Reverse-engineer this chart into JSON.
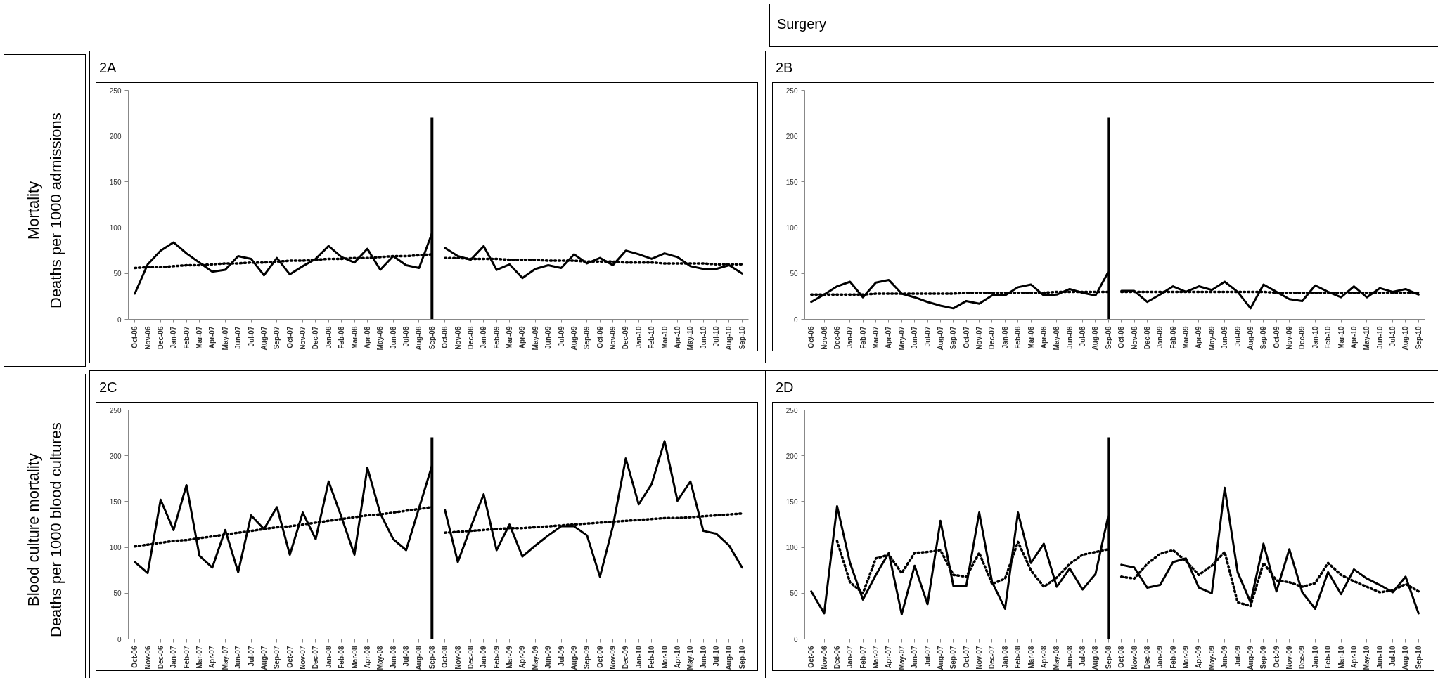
{
  "chart_data": [
    {
      "type": "line",
      "title": "2A",
      "ylabel": "Mortality\nDeaths per 1000 admissions",
      "categories": [
        "Oct-06",
        "Nov-06",
        "Dec-06",
        "Jan-07",
        "Feb-07",
        "Mar-07",
        "Apr-07",
        "May-07",
        "Jun-07",
        "Jul-07",
        "Aug-07",
        "Sep-07",
        "Oct-07",
        "Nov-07",
        "Dec-07",
        "Jan-08",
        "Feb-08",
        "Mar-08",
        "Apr-08",
        "May-08",
        "Jun-08",
        "Jul-08",
        "Aug-08",
        "Sep-08",
        "Oct-08",
        "Nov-08",
        "Dec-08",
        "Jan-09",
        "Feb-09",
        "Mar-09",
        "Apr-09",
        "May-09",
        "Jun-09",
        "Jul-09",
        "Aug-09",
        "Sep-09",
        "Oct-09",
        "Nov-09",
        "Dec-09",
        "Jan-10",
        "Feb-10",
        "Mar-10",
        "Apr-10",
        "May-10",
        "Jun-10",
        "Jul-10",
        "Aug-10",
        "Sep-10"
      ],
      "ylim": [
        0,
        250
      ],
      "yticks": [
        0,
        50,
        100,
        150,
        200,
        250
      ],
      "grid": false,
      "ref_lines": [
        {
          "axis": "x",
          "value": "Sep-08",
          "color": "#000000"
        }
      ],
      "series": [
        {
          "color": "#000000",
          "line_style": "solid",
          "values": [
            28,
            60,
            75,
            84,
            72,
            62,
            52,
            54,
            69,
            66,
            48,
            67,
            49,
            58,
            66,
            80,
            68,
            62,
            77,
            54,
            69,
            59,
            56,
            94,
            null,
            null,
            null,
            null,
            null,
            null,
            null,
            null,
            null,
            null,
            null,
            null,
            null,
            null,
            null,
            null,
            null,
            null,
            null,
            null,
            null,
            null,
            null,
            null
          ]
        },
        {
          "color": "#000000",
          "line_style": "solid",
          "values": [
            null,
            null,
            null,
            null,
            null,
            null,
            null,
            null,
            null,
            null,
            null,
            null,
            null,
            null,
            null,
            null,
            null,
            null,
            null,
            null,
            null,
            null,
            null,
            null,
            78,
            69,
            65,
            80,
            54,
            60,
            45,
            55,
            59,
            56,
            71,
            61,
            67,
            59,
            75,
            71,
            66,
            72,
            68,
            58,
            55,
            55,
            59,
            50
          ]
        },
        {
          "color": "#000000",
          "line_style": "dotted",
          "values": [
            56,
            57,
            57,
            58,
            59,
            59,
            60,
            61,
            61,
            62,
            62,
            63,
            64,
            64,
            65,
            66,
            66,
            67,
            67,
            68,
            69,
            69,
            70,
            71,
            null,
            null,
            null,
            null,
            null,
            null,
            null,
            null,
            null,
            null,
            null,
            null,
            null,
            null,
            null,
            null,
            null,
            null,
            null,
            null,
            null,
            null,
            null,
            null
          ]
        },
        {
          "color": "#000000",
          "line_style": "dotted",
          "values": [
            null,
            null,
            null,
            null,
            null,
            null,
            null,
            null,
            null,
            null,
            null,
            null,
            null,
            null,
            null,
            null,
            null,
            null,
            null,
            null,
            null,
            null,
            null,
            null,
            67,
            67,
            66,
            66,
            66,
            65,
            65,
            65,
            64,
            64,
            64,
            63,
            63,
            63,
            62,
            62,
            62,
            61,
            61,
            61,
            61,
            60,
            60,
            60
          ]
        }
      ]
    },
    {
      "type": "line",
      "title": "2B",
      "subtitle": "Surgery",
      "categories": [
        "Oct-06",
        "Nov-06",
        "Dec-06",
        "Jan-07",
        "Feb-07",
        "Mar-07",
        "Apr-07",
        "May-07",
        "Jun-07",
        "Jul-07",
        "Aug-07",
        "Sep-07",
        "Oct-07",
        "Nov-07",
        "Dec-07",
        "Jan-08",
        "Feb-08",
        "Mar-08",
        "Apr-08",
        "May-08",
        "Jun-08",
        "Jul-08",
        "Aug-08",
        "Sep-08",
        "Oct-08",
        "Nov-08",
        "Dec-08",
        "Jan-09",
        "Feb-09",
        "Mar-09",
        "Apr-09",
        "May-09",
        "Jun-09",
        "Jul-09",
        "Aug-09",
        "Sep-09",
        "Oct-09",
        "Nov-09",
        "Dec-09",
        "Jan-10",
        "Feb-10",
        "Mar-10",
        "Apr-10",
        "May-10",
        "Jun-10",
        "Jul-10",
        "Aug-10",
        "Sep-10"
      ],
      "ylim": [
        0,
        250
      ],
      "yticks": [
        0,
        50,
        100,
        150,
        200,
        250
      ],
      "grid": false,
      "ref_lines": [
        {
          "axis": "x",
          "value": "Sep-08",
          "color": "#000000"
        }
      ],
      "series": [
        {
          "color": "#000000",
          "line_style": "solid",
          "values": [
            19,
            27,
            36,
            41,
            24,
            40,
            43,
            28,
            24,
            19,
            15,
            12,
            20,
            17,
            26,
            26,
            35,
            38,
            26,
            27,
            33,
            29,
            26,
            52,
            null,
            null,
            null,
            null,
            null,
            null,
            null,
            null,
            null,
            null,
            null,
            null,
            null,
            null,
            null,
            null,
            null,
            null,
            null,
            null,
            null,
            null,
            null,
            null
          ]
        },
        {
          "color": "#000000",
          "line_style": "solid",
          "values": [
            null,
            null,
            null,
            null,
            null,
            null,
            null,
            null,
            null,
            null,
            null,
            null,
            null,
            null,
            null,
            null,
            null,
            null,
            null,
            null,
            null,
            null,
            null,
            null,
            31,
            31,
            19,
            27,
            36,
            30,
            36,
            32,
            41,
            30,
            12,
            38,
            30,
            22,
            20,
            37,
            30,
            24,
            36,
            24,
            34,
            30,
            33,
            27
          ]
        },
        {
          "color": "#000000",
          "line_style": "dotted",
          "values": [
            27,
            27,
            27,
            27,
            27,
            28,
            28,
            28,
            28,
            28,
            28,
            28,
            29,
            29,
            29,
            29,
            29,
            29,
            29,
            30,
            30,
            30,
            30,
            30,
            null,
            null,
            null,
            null,
            null,
            null,
            null,
            null,
            null,
            null,
            null,
            null,
            null,
            null,
            null,
            null,
            null,
            null,
            null,
            null,
            null,
            null,
            null,
            null
          ]
        },
        {
          "color": "#000000",
          "line_style": "dotted",
          "values": [
            null,
            null,
            null,
            null,
            null,
            null,
            null,
            null,
            null,
            null,
            null,
            null,
            null,
            null,
            null,
            null,
            null,
            null,
            null,
            null,
            null,
            null,
            null,
            null,
            30,
            30,
            30,
            30,
            30,
            30,
            30,
            30,
            30,
            30,
            30,
            30,
            29,
            29,
            29,
            29,
            29,
            29,
            29,
            29,
            29,
            29,
            29,
            29
          ]
        }
      ]
    },
    {
      "type": "line",
      "title": "2C",
      "ylabel": "Blood culture mortality\nDeaths per 1000 blood cultures",
      "categories": [
        "Oct-06",
        "Nov-06",
        "Dec-06",
        "Jan-07",
        "Feb-07",
        "Mar-07",
        "Apr-07",
        "May-07",
        "Jun-07",
        "Jul-07",
        "Aug-07",
        "Sep-07",
        "Oct-07",
        "Nov-07",
        "Dec-07",
        "Jan-08",
        "Feb-08",
        "Mar-08",
        "Apr-08",
        "May-08",
        "Jun-08",
        "Jul-08",
        "Aug-08",
        "Sep-08",
        "Oct-08",
        "Nov-08",
        "Dec-08",
        "Jan-09",
        "Feb-09",
        "Mar-09",
        "Apr-09",
        "May-09",
        "Jun-09",
        "Jul-09",
        "Aug-09",
        "Sep-09",
        "Oct-09",
        "Nov-09",
        "Dec-09",
        "Jan-10",
        "Feb-10",
        "Mar-10",
        "Apr-10",
        "May-10",
        "Jun-10",
        "Jul-10",
        "Aug-10",
        "Sep-10"
      ],
      "ylim": [
        0,
        250
      ],
      "yticks": [
        0,
        50,
        100,
        150,
        200,
        250
      ],
      "grid": false,
      "ref_lines": [
        {
          "axis": "x",
          "value": "Sep-08",
          "color": "#000000"
        }
      ],
      "series": [
        {
          "color": "#000000",
          "line_style": "solid",
          "values": [
            84,
            72,
            152,
            119,
            168,
            91,
            78,
            119,
            73,
            135,
            120,
            144,
            92,
            138,
            109,
            172,
            133,
            92,
            187,
            137,
            109,
            97,
            143,
            189,
            null,
            null,
            null,
            null,
            null,
            null,
            null,
            null,
            null,
            null,
            null,
            null,
            null,
            null,
            null,
            null,
            null,
            null,
            null,
            null,
            null,
            null,
            null,
            null
          ]
        },
        {
          "color": "#000000",
          "line_style": "solid",
          "values": [
            null,
            null,
            null,
            null,
            null,
            null,
            null,
            null,
            null,
            null,
            null,
            null,
            null,
            null,
            null,
            null,
            null,
            null,
            null,
            null,
            null,
            null,
            null,
            null,
            141,
            84,
            122,
            158,
            97,
            125,
            90,
            102,
            113,
            123,
            123,
            113,
            68,
            123,
            197,
            147,
            169,
            216,
            151,
            172,
            118,
            115,
            102,
            78
          ]
        },
        {
          "color": "#000000",
          "line_style": "dotted",
          "values": [
            101,
            103,
            105,
            107,
            108,
            110,
            112,
            114,
            116,
            118,
            120,
            122,
            123,
            125,
            127,
            129,
            131,
            133,
            135,
            136,
            138,
            140,
            142,
            144,
            null,
            null,
            null,
            null,
            null,
            null,
            null,
            null,
            null,
            null,
            null,
            null,
            null,
            null,
            null,
            null,
            null,
            null,
            null,
            null,
            null,
            null,
            null,
            null
          ]
        },
        {
          "color": "#000000",
          "line_style": "dotted",
          "values": [
            null,
            null,
            null,
            null,
            null,
            null,
            null,
            null,
            null,
            null,
            null,
            null,
            null,
            null,
            null,
            null,
            null,
            null,
            null,
            null,
            null,
            null,
            null,
            null,
            116,
            117,
            118,
            119,
            120,
            121,
            121,
            122,
            123,
            124,
            125,
            126,
            127,
            128,
            129,
            130,
            131,
            132,
            132,
            133,
            134,
            135,
            136,
            137
          ]
        }
      ]
    },
    {
      "type": "line",
      "title": "2D",
      "categories": [
        "Oct-06",
        "Nov-06",
        "Dec-06",
        "Jan-07",
        "Feb-07",
        "Mar-07",
        "Apr-07",
        "May-07",
        "Jun-07",
        "Jul-07",
        "Aug-07",
        "Sep-07",
        "Oct-07",
        "Nov-07",
        "Dec-07",
        "Jan-08",
        "Feb-08",
        "Mar-08",
        "Apr-08",
        "May-08",
        "Jun-08",
        "Jul-08",
        "Aug-08",
        "Sep-08",
        "Oct-08",
        "Nov-08",
        "Dec-08",
        "Jan-09",
        "Feb-09",
        "Mar-09",
        "Apr-09",
        "May-09",
        "Jun-09",
        "Jul-09",
        "Aug-09",
        "Sep-09",
        "Oct-09",
        "Nov-09",
        "Dec-09",
        "Jan-10",
        "Feb-10",
        "Mar-10",
        "Apr-10",
        "May-10",
        "Jun-10",
        "Jul-10",
        "Aug-10",
        "Sep-10"
      ],
      "ylim": [
        0,
        250
      ],
      "yticks": [
        0,
        50,
        100,
        150,
        200,
        250
      ],
      "grid": false,
      "ref_lines": [
        {
          "axis": "x",
          "value": "Sep-08",
          "color": "#000000"
        }
      ],
      "series": [
        {
          "color": "#000000",
          "line_style": "solid",
          "values": [
            52,
            28,
            145,
            83,
            43,
            70,
            94,
            27,
            80,
            38,
            129,
            58,
            58,
            138,
            62,
            33,
            138,
            83,
            104,
            57,
            77,
            54,
            71,
            135,
            null,
            null,
            null,
            null,
            null,
            null,
            null,
            null,
            null,
            null,
            null,
            null,
            null,
            null,
            null,
            null,
            null,
            null,
            null,
            null,
            null,
            null,
            null,
            null
          ]
        },
        {
          "color": "#000000",
          "line_style": "solid",
          "values": [
            null,
            null,
            null,
            null,
            null,
            null,
            null,
            null,
            null,
            null,
            null,
            null,
            null,
            null,
            null,
            null,
            null,
            null,
            null,
            null,
            null,
            null,
            null,
            null,
            81,
            78,
            56,
            59,
            84,
            88,
            56,
            50,
            165,
            73,
            40,
            104,
            52,
            98,
            51,
            33,
            73,
            49,
            76,
            66,
            59,
            51,
            68,
            28
          ]
        },
        {
          "color": "#000000",
          "line_style": "dotted",
          "values": [
            null,
            null,
            107,
            62,
            50,
            88,
            92,
            72,
            94,
            95,
            97,
            70,
            68,
            94,
            60,
            66,
            106,
            75,
            57,
            67,
            82,
            92,
            95,
            98,
            null,
            null,
            null,
            null,
            null,
            null,
            null,
            null,
            null,
            null,
            null,
            null,
            null,
            null,
            null,
            null,
            null,
            null,
            null,
            null,
            null,
            null,
            null,
            null
          ]
        },
        {
          "color": "#000000",
          "line_style": "dotted",
          "values": [
            null,
            null,
            null,
            null,
            null,
            null,
            null,
            null,
            null,
            null,
            null,
            null,
            null,
            null,
            null,
            null,
            null,
            null,
            null,
            null,
            null,
            null,
            null,
            null,
            68,
            66,
            82,
            93,
            97,
            85,
            70,
            80,
            95,
            40,
            36,
            83,
            64,
            62,
            57,
            61,
            83,
            70,
            63,
            57,
            51,
            53,
            60,
            52
          ]
        }
      ]
    }
  ]
}
